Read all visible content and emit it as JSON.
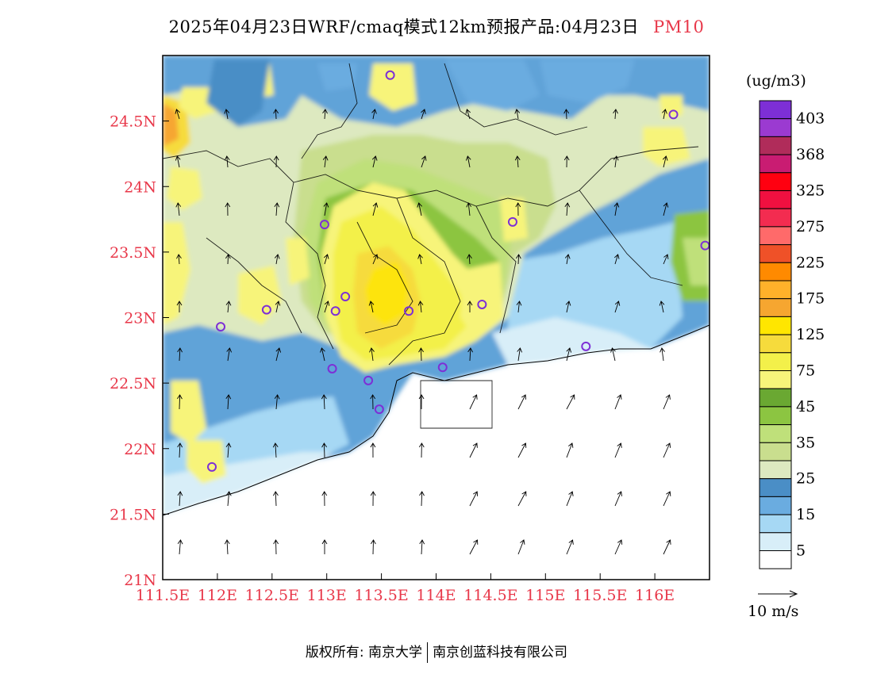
{
  "title": {
    "main": "2025年04月23日WRF/cmaq模式12km预报产品:04月23日",
    "pollutant": "PM10"
  },
  "map": {
    "lon_range": [
      111.5,
      116.5
    ],
    "lat_range": [
      21.0,
      25.0
    ],
    "x_ticks": [
      "111.5E",
      "112E",
      "112.5E",
      "113E",
      "113.5E",
      "114E",
      "114.5E",
      "115E",
      "115.5E",
      "116E"
    ],
    "y_ticks": [
      "21N",
      "21.5N",
      "22N",
      "22.5N",
      "23N",
      "23.5N",
      "24N",
      "24.5N"
    ],
    "tick_color": "#e8384a"
  },
  "legend": {
    "unit": "(ug/m3)",
    "levels": [
      {
        "label": "403",
        "color": "#7d2fd6"
      },
      {
        "label": "",
        "color": "#9b3ad1"
      },
      {
        "label": "368",
        "color": "#b02c5a"
      },
      {
        "label": "",
        "color": "#c91c72"
      },
      {
        "label": "325",
        "color": "#ff0010"
      },
      {
        "label": "",
        "color": "#f01040"
      },
      {
        "label": "275",
        "color": "#f32c50"
      },
      {
        "label": "",
        "color": "#ff6a6a"
      },
      {
        "label": "225",
        "color": "#ef5128"
      },
      {
        "label": "",
        "color": "#ff8a00"
      },
      {
        "label": "175",
        "color": "#ffb12a"
      },
      {
        "label": "",
        "color": "#f6a630"
      },
      {
        "label": "125",
        "color": "#ffe600"
      },
      {
        "label": "",
        "color": "#f6db3c"
      },
      {
        "label": "75",
        "color": "#f3f04a"
      },
      {
        "label": "",
        "color": "#f7f47a"
      },
      {
        "label": "45",
        "color": "#6aa832"
      },
      {
        "label": "",
        "color": "#8cc541"
      },
      {
        "label": "35",
        "color": "#bfe07a"
      },
      {
        "label": "",
        "color": "#c9de8e"
      },
      {
        "label": "25",
        "color": "#dde9c0"
      },
      {
        "label": "",
        "color": "#4a8ec6"
      },
      {
        "label": "15",
        "color": "#6aace0"
      },
      {
        "label": "",
        "color": "#a6d8f4"
      },
      {
        "label": "5",
        "color": "#d8eef8"
      },
      {
        "label": "",
        "color": "#ffffff"
      }
    ],
    "vector_scale": "10 m/s"
  },
  "sites": [
    {
      "lon": 113.58,
      "lat": 24.85
    },
    {
      "lon": 116.17,
      "lat": 24.55
    },
    {
      "lon": 112.98,
      "lat": 23.71
    },
    {
      "lon": 114.7,
      "lat": 23.73
    },
    {
      "lon": 116.46,
      "lat": 23.55
    },
    {
      "lon": 113.17,
      "lat": 23.16
    },
    {
      "lon": 113.08,
      "lat": 23.05
    },
    {
      "lon": 112.45,
      "lat": 23.06
    },
    {
      "lon": 112.03,
      "lat": 22.93
    },
    {
      "lon": 113.75,
      "lat": 23.05
    },
    {
      "lon": 114.42,
      "lat": 23.1
    },
    {
      "lon": 115.37,
      "lat": 22.78
    },
    {
      "lon": 113.05,
      "lat": 22.61
    },
    {
      "lon": 113.38,
      "lat": 22.52
    },
    {
      "lon": 114.06,
      "lat": 22.62
    },
    {
      "lon": 113.48,
      "lat": 22.3
    },
    {
      "lon": 111.95,
      "lat": 21.86
    }
  ],
  "footer": {
    "copyright": "版权所有: 南京大学",
    "company": "南京创蓝科技有限公司"
  }
}
